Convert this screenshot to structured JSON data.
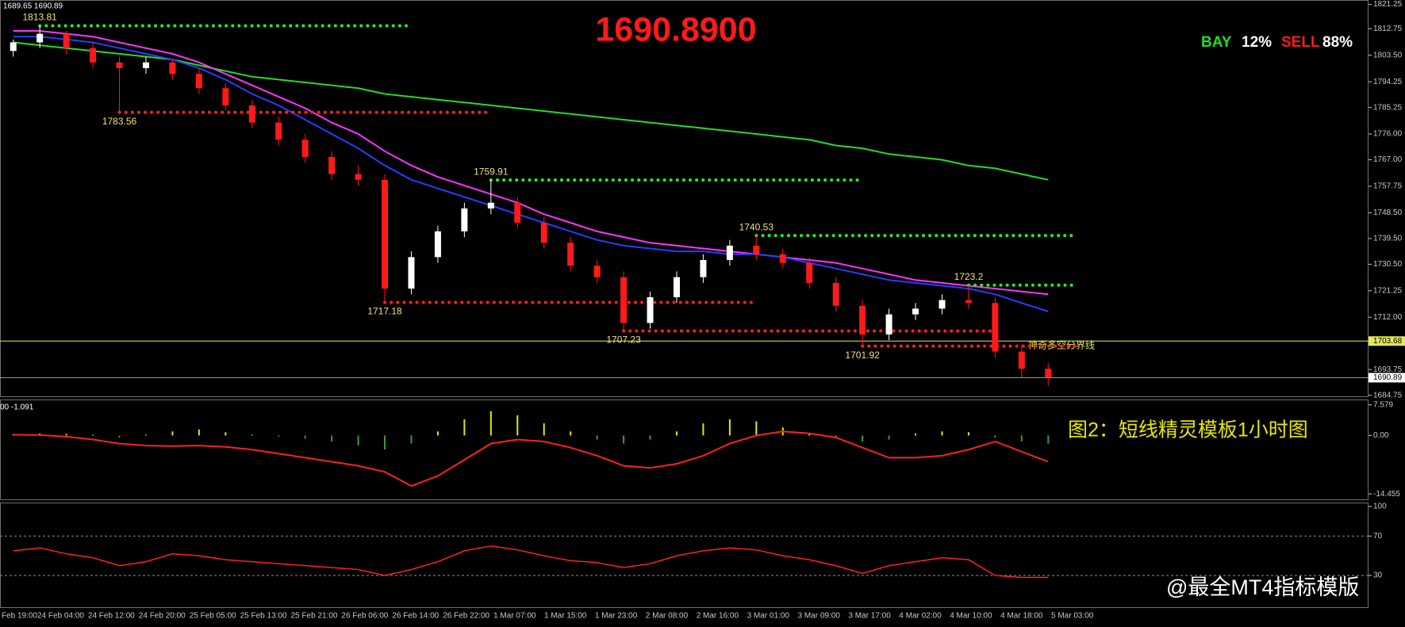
{
  "header": {
    "ohlc_text": "1689.65 1690.89",
    "price": "1690.8900",
    "bay_label": "BAY",
    "bay_pct": "12%",
    "sell_label": "SELL",
    "sell_pct": "88%"
  },
  "watermark": "@最全MT4指标模版",
  "time_axis": {
    "labels": [
      "Feb 19:00",
      "24 Feb 04:00",
      "24 Feb 12:00",
      "24 Feb 20:00",
      "25 Feb 05:00",
      "25 Feb 13:00",
      "25 Feb 21:00",
      "26 Feb 06:00",
      "26 Feb 14:00",
      "26 Feb 22:00",
      "1 Mar 07:00",
      "1 Mar 15:00",
      "1 Mar 23:00",
      "2 Mar 08:00",
      "2 Mar 16:00",
      "3 Mar 01:00",
      "3 Mar 09:00",
      "3 Mar 17:00",
      "4 Mar 02:00",
      "4 Mar 10:00",
      "4 Mar 18:00",
      "5 Mar 03:00"
    ]
  },
  "chart_data": [
    {
      "type": "candlestick",
      "ylim": [
        1684.1,
        1822.8
      ],
      "yticks": [
        1821.25,
        1812.75,
        {
          "value": 1803.5,
          "label": "1803.50"
        },
        1794.25,
        1785.25,
        {
          "value": 1776,
          "label": "1776.00"
        },
        {
          "value": 1767,
          "label": "1767.00"
        },
        1757.75,
        {
          "value": 1748.5,
          "label": "1748.50"
        },
        {
          "value": 1739.5,
          "label": "1739.50"
        },
        {
          "value": 1730.5,
          "label": "1730.50"
        },
        1721.25,
        {
          "value": 1712,
          "label": "1712.00"
        },
        1693.75,
        1684.75
      ],
      "up_color": "#ffffff",
      "down_color": "#ff1a1a",
      "open": [
        1805,
        1808,
        1811,
        1806,
        1801,
        1799,
        1801,
        1797,
        1792,
        1786,
        1780,
        1774,
        1768,
        1762,
        1760,
        1722,
        1733,
        1742,
        1750,
        1752,
        1745,
        1738,
        1730,
        1726,
        1710,
        1719,
        1726,
        1732,
        1737,
        1734,
        1731,
        1724,
        1716,
        1706,
        1713,
        1715,
        1718,
        1717,
        1700,
        1694
      ],
      "high": [
        1809,
        1813.81,
        1812,
        1808,
        1803,
        1803,
        1802,
        1799,
        1794,
        1788,
        1782,
        1776,
        1770,
        1765,
        1762,
        1735,
        1744,
        1752,
        1759.91,
        1754,
        1747,
        1740,
        1732,
        1728,
        1721,
        1728,
        1734,
        1739,
        1740.53,
        1736,
        1733,
        1726,
        1718,
        1715,
        1717,
        1720,
        1723.2,
        1719,
        1702,
        1696
      ],
      "low": [
        1803,
        1806,
        1804,
        1799,
        1783.56,
        1797,
        1795,
        1790,
        1784,
        1778,
        1772,
        1766,
        1760,
        1758,
        1717.18,
        1720,
        1731,
        1740,
        1748,
        1743,
        1736,
        1728,
        1724,
        1707.23,
        1708,
        1717,
        1724,
        1730,
        1732,
        1729,
        1722,
        1714,
        1701.92,
        1704,
        1711,
        1713,
        1715,
        1698,
        1691,
        1688
      ],
      "close": [
        1808,
        1811,
        1806,
        1801,
        1799,
        1801,
        1797,
        1792,
        1786,
        1780,
        1774,
        1768,
        1762,
        1760,
        1722,
        1733,
        1742,
        1750,
        1752,
        1745,
        1738,
        1730,
        1726,
        1710,
        1719,
        1726,
        1732,
        1737,
        1734,
        1731,
        1724,
        1716,
        1706,
        1713,
        1715,
        1718,
        1717,
        1700,
        1694,
        1691
      ],
      "price_labels": [
        1813.81,
        1783.56,
        1759.91,
        1717.18,
        1740.53,
        1707.23,
        1701.92,
        1723.2
      ],
      "lines": [
        {
          "color": "#22dd22",
          "values": [
            1808,
            1807,
            1806,
            1805,
            1804,
            1803,
            1802,
            1800,
            1798,
            1796,
            1795,
            1794,
            1793,
            1792,
            1790,
            1789,
            1788,
            1787,
            1786,
            1785,
            1784,
            1783,
            1782,
            1781,
            1780,
            1779,
            1778,
            1777,
            1776,
            1775,
            1774,
            1772,
            1771,
            1769,
            1768,
            1767,
            1765,
            1764,
            1762,
            1760
          ]
        },
        {
          "color": "#ff33ff",
          "values": [
            1812,
            1812,
            1811,
            1810,
            1808,
            1806,
            1804,
            1801,
            1797,
            1793,
            1789,
            1785,
            1780,
            1776,
            1770,
            1765,
            1761,
            1758,
            1755,
            1752,
            1748,
            1745,
            1742,
            1740,
            1738,
            1737,
            1736,
            1735,
            1734,
            1733,
            1732,
            1731,
            1729,
            1727,
            1725,
            1724,
            1723,
            1722,
            1721,
            1720
          ]
        },
        {
          "color": "#2a3cff",
          "values": [
            1810,
            1810,
            1809,
            1808,
            1806,
            1804,
            1802,
            1799,
            1795,
            1790,
            1786,
            1781,
            1776,
            1771,
            1765,
            1760,
            1757,
            1754,
            1751,
            1748,
            1745,
            1742,
            1739,
            1737,
            1736,
            1735,
            1735,
            1734,
            1734,
            1733,
            1731,
            1729,
            1727,
            1725,
            1724,
            1723,
            1722,
            1720,
            1717,
            1714
          ]
        }
      ],
      "boundary_line": 1703.68,
      "boundary_label": "神奇多空分界线",
      "boundary_color": "#e6e65a",
      "current_price": 1690.89
    },
    {
      "type": "macd",
      "header": "00 -1.091",
      "title": "图2：短线精灵模板1小时图",
      "ylim": [
        -16,
        8.9
      ],
      "yticks": [
        7.579,
        {
          "value": 0,
          "label": "0.00"
        },
        -14.455
      ],
      "hist_up": "#e6e600",
      "hist_down": "#3a9a3a",
      "signal_color": "#ff2020",
      "histogram": [
        0.3,
        0.5,
        0.4,
        0.2,
        -0.5,
        0.2,
        1,
        1.5,
        0.8,
        0.2,
        -0.3,
        -0.8,
        -1.5,
        -2.5,
        -3.5,
        -2,
        1,
        4,
        6,
        5,
        3,
        1,
        -1,
        -2,
        -1,
        1,
        3,
        4,
        3.5,
        2,
        0.5,
        -0.5,
        -1.5,
        -1,
        0.5,
        1,
        0.8,
        -0.5,
        -1.5,
        -2
      ],
      "signal": [
        0.2,
        0.1,
        -0.3,
        -1,
        -2,
        -2.5,
        -2.6,
        -2.5,
        -2.8,
        -3.5,
        -4.5,
        -5.5,
        -6.5,
        -7.5,
        -9,
        -12.5,
        -10,
        -6,
        -2,
        -1,
        -1.5,
        -3,
        -5,
        -7.5,
        -8,
        -7,
        -5,
        -2,
        0,
        1,
        0.5,
        -0.5,
        -3,
        -5.5,
        -5.5,
        -5,
        -3.5,
        -1.5,
        -4,
        -6.5
      ]
    },
    {
      "type": "rsi",
      "ylim": [
        -3,
        104
      ],
      "yticks": [
        100,
        70,
        30
      ],
      "color": "#ff2020",
      "values": [
        55,
        58,
        52,
        48,
        40,
        44,
        52,
        50,
        46,
        44,
        42,
        40,
        38,
        36,
        30,
        36,
        44,
        55,
        60,
        56,
        50,
        45,
        43,
        38,
        42,
        50,
        55,
        58,
        56,
        50,
        46,
        40,
        32,
        40,
        44,
        48,
        46,
        30,
        28,
        28
      ]
    }
  ]
}
